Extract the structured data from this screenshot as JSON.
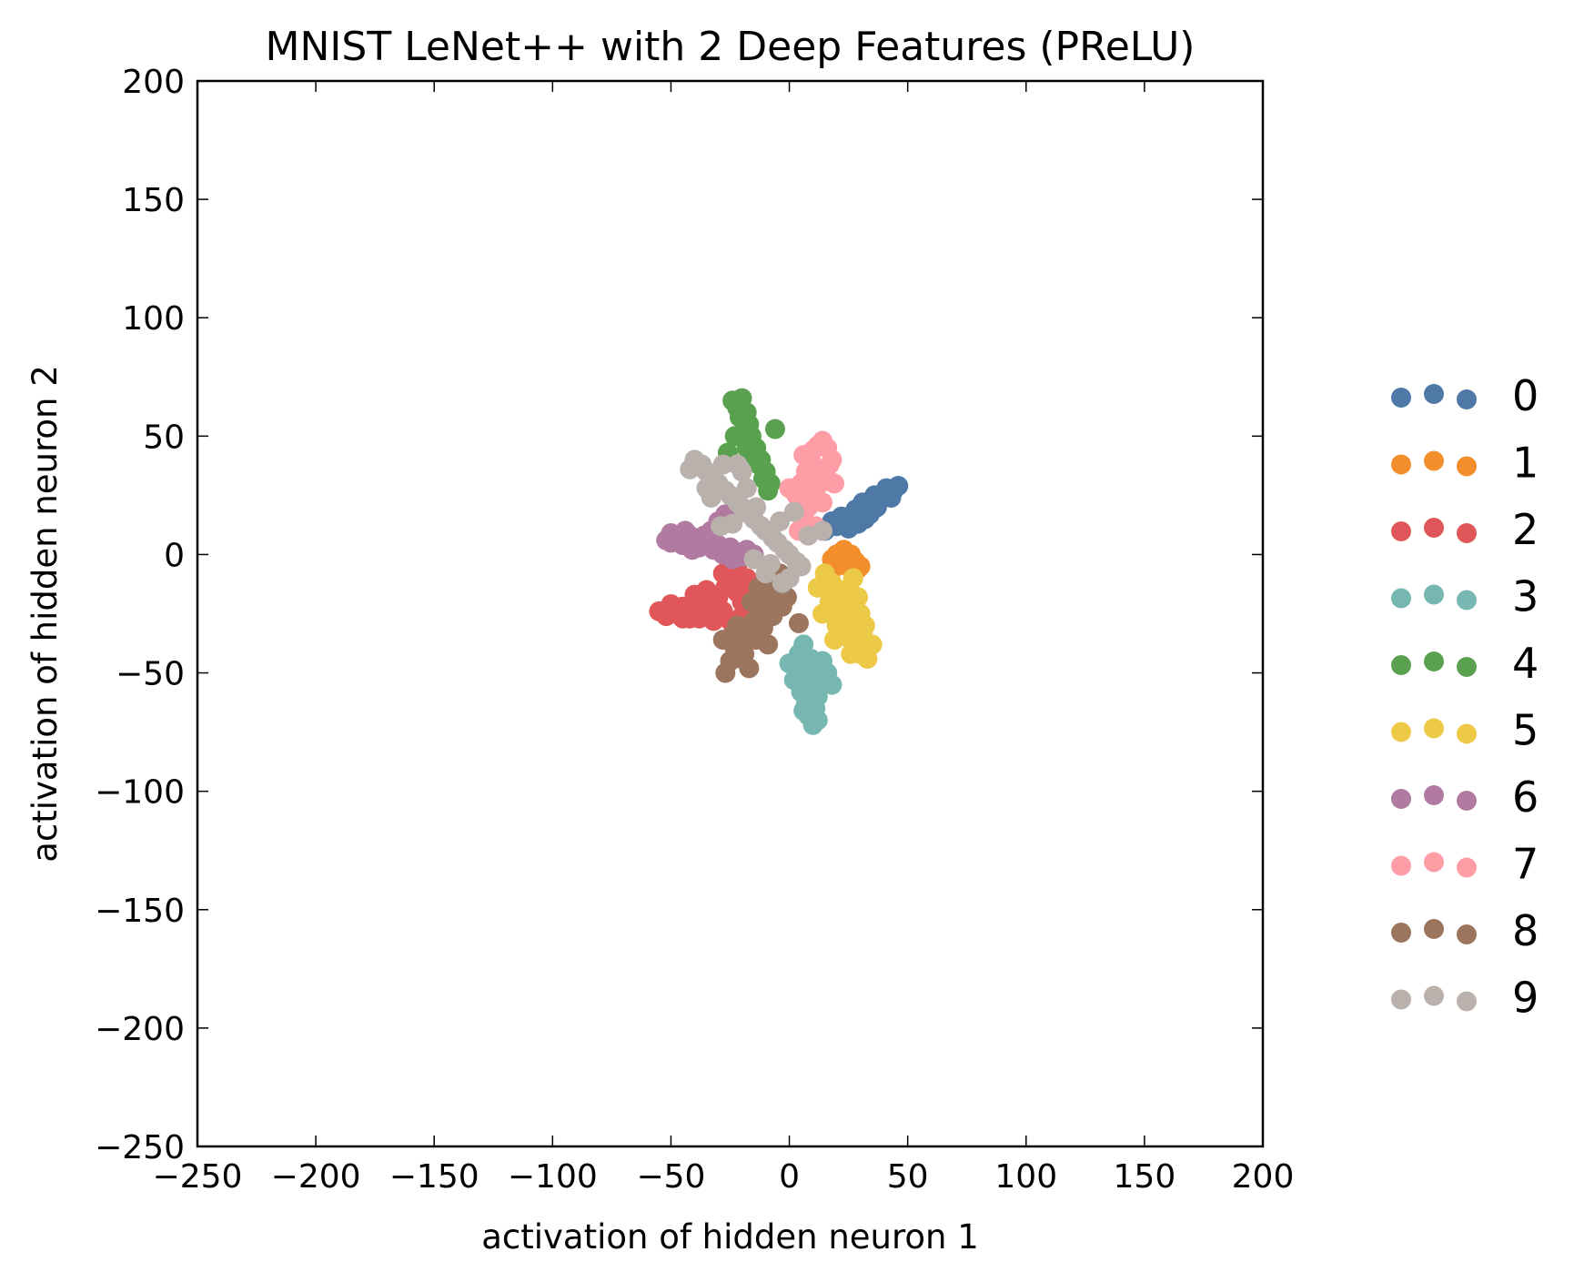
{
  "chart_data": {
    "type": "scatter",
    "title": "MNIST LeNet++ with 2 Deep Features (PReLU)",
    "xlabel": "activation of hidden neuron 1",
    "ylabel": "activation of hidden neuron 2",
    "xlim": [
      -250,
      200
    ],
    "ylim": [
      -250,
      200
    ],
    "xticks": [
      -250,
      -200,
      -150,
      -100,
      -50,
      0,
      50,
      100,
      150,
      200
    ],
    "yticks": [
      -250,
      -200,
      -150,
      -100,
      -50,
      0,
      50,
      100,
      150,
      200
    ],
    "xtick_labels": [
      "−250",
      "−200",
      "−150",
      "−100",
      "−50",
      "0",
      "50",
      "100",
      "150",
      "200"
    ],
    "ytick_labels": [
      "−250",
      "−200",
      "−150",
      "−100",
      "−50",
      "0",
      "50",
      "100",
      "150",
      "200"
    ],
    "grid": false,
    "legend_position": "right",
    "series": [
      {
        "name": "0",
        "color": "#4e79a7",
        "points": [
          [
            15,
            10
          ],
          [
            20,
            12
          ],
          [
            24,
            14
          ],
          [
            27,
            16
          ],
          [
            30,
            18
          ],
          [
            33,
            19
          ],
          [
            35,
            21
          ],
          [
            38,
            23
          ],
          [
            40,
            24
          ],
          [
            42,
            26
          ],
          [
            44,
            27
          ],
          [
            46,
            29
          ],
          [
            22,
            16
          ],
          [
            28,
            19
          ],
          [
            31,
            22
          ],
          [
            36,
            25
          ],
          [
            41,
            28
          ],
          [
            18,
            14
          ],
          [
            25,
            11
          ],
          [
            32,
            15
          ],
          [
            37,
            20
          ],
          [
            43,
            24
          ],
          [
            29,
            13
          ],
          [
            34,
            17
          ]
        ]
      },
      {
        "name": "1",
        "color": "#f28e2b",
        "points": [
          [
            18,
            -2
          ],
          [
            20,
            0
          ],
          [
            22,
            1
          ],
          [
            24,
            -1
          ],
          [
            26,
            0
          ],
          [
            28,
            -3
          ],
          [
            30,
            -5
          ],
          [
            22,
            -3
          ],
          [
            25,
            -4
          ],
          [
            27,
            -2
          ],
          [
            29,
            -6
          ],
          [
            20,
            -5
          ],
          [
            23,
            2
          ],
          [
            26,
            -6
          ]
        ]
      },
      {
        "name": "2",
        "color": "#e15759",
        "points": [
          [
            -55,
            -24
          ],
          [
            -52,
            -26
          ],
          [
            -48,
            -25
          ],
          [
            -45,
            -22
          ],
          [
            -42,
            -27
          ],
          [
            -40,
            -24
          ],
          [
            -38,
            -20
          ],
          [
            -35,
            -26
          ],
          [
            -32,
            -22
          ],
          [
            -30,
            -18
          ],
          [
            -28,
            -24
          ],
          [
            -25,
            -12
          ],
          [
            -22,
            -16
          ],
          [
            -20,
            -20
          ],
          [
            -18,
            -10
          ],
          [
            -15,
            -14
          ],
          [
            -25,
            -28
          ],
          [
            -32,
            -28
          ],
          [
            -40,
            -17
          ],
          [
            -28,
            -8
          ],
          [
            -20,
            -26
          ],
          [
            -35,
            -15
          ],
          [
            -22,
            -6
          ],
          [
            -45,
            -27
          ],
          [
            -50,
            -21
          ],
          [
            -27,
            -14
          ],
          [
            -17,
            -18
          ],
          [
            -38,
            -27
          ]
        ]
      },
      {
        "name": "3",
        "color": "#76b7b2",
        "points": [
          [
            0,
            -46
          ],
          [
            3,
            -52
          ],
          [
            5,
            -58
          ],
          [
            7,
            -63
          ],
          [
            8,
            -68
          ],
          [
            10,
            -72
          ],
          [
            12,
            -70
          ],
          [
            8,
            -55
          ],
          [
            10,
            -50
          ],
          [
            13,
            -48
          ],
          [
            15,
            -54
          ],
          [
            18,
            -55
          ],
          [
            4,
            -42
          ],
          [
            6,
            -38
          ],
          [
            9,
            -44
          ],
          [
            12,
            -60
          ],
          [
            14,
            -45
          ],
          [
            2,
            -53
          ],
          [
            6,
            -66
          ],
          [
            11,
            -65
          ],
          [
            16,
            -50
          ],
          [
            7,
            -48
          ]
        ]
      },
      {
        "name": "4",
        "color": "#59a14f",
        "points": [
          [
            -24,
            65
          ],
          [
            -22,
            62
          ],
          [
            -20,
            66
          ],
          [
            -18,
            60
          ],
          [
            -17,
            55
          ],
          [
            -16,
            50
          ],
          [
            -14,
            45
          ],
          [
            -12,
            40
          ],
          [
            -10,
            35
          ],
          [
            -8,
            30
          ],
          [
            -19,
            52
          ],
          [
            -15,
            42
          ],
          [
            -11,
            32
          ],
          [
            -6,
            53
          ],
          [
            -26,
            43
          ],
          [
            -21,
            58
          ],
          [
            -13,
            38
          ],
          [
            -9,
            27
          ],
          [
            -23,
            50
          ],
          [
            -18,
            45
          ]
        ]
      },
      {
        "name": "5",
        "color": "#edc948",
        "points": [
          [
            15,
            -8
          ],
          [
            18,
            -12
          ],
          [
            20,
            -18
          ],
          [
            22,
            -24
          ],
          [
            24,
            -30
          ],
          [
            26,
            -36
          ],
          [
            28,
            -40
          ],
          [
            30,
            -42
          ],
          [
            33,
            -44
          ],
          [
            35,
            -38
          ],
          [
            25,
            -22
          ],
          [
            28,
            -28
          ],
          [
            31,
            -34
          ],
          [
            20,
            -30
          ],
          [
            17,
            -20
          ],
          [
            23,
            -15
          ],
          [
            29,
            -18
          ],
          [
            26,
            -42
          ],
          [
            32,
            -30
          ],
          [
            14,
            -25
          ],
          [
            19,
            -36
          ],
          [
            30,
            -25
          ],
          [
            12,
            -14
          ],
          [
            27,
            -10
          ]
        ]
      },
      {
        "name": "6",
        "color": "#b07aa1",
        "points": [
          [
            -52,
            6
          ],
          [
            -50,
            9
          ],
          [
            -47,
            7
          ],
          [
            -45,
            4
          ],
          [
            -42,
            8
          ],
          [
            -40,
            5
          ],
          [
            -38,
            3
          ],
          [
            -35,
            6
          ],
          [
            -32,
            2
          ],
          [
            -30,
            4
          ],
          [
            -28,
            0
          ],
          [
            -25,
            3
          ],
          [
            -22,
            1
          ],
          [
            -20,
            -1
          ],
          [
            -18,
            2
          ],
          [
            -15,
            0
          ],
          [
            -30,
            14
          ],
          [
            -33,
            10
          ],
          [
            -27,
            17
          ],
          [
            -44,
            10
          ],
          [
            -36,
            8
          ],
          [
            -24,
            -2
          ],
          [
            -41,
            2
          ],
          [
            -50,
            5
          ]
        ]
      },
      {
        "name": "7",
        "color": "#ff9da7",
        "points": [
          [
            0,
            28
          ],
          [
            3,
            25
          ],
          [
            5,
            30
          ],
          [
            7,
            35
          ],
          [
            9,
            40
          ],
          [
            10,
            44
          ],
          [
            12,
            46
          ],
          [
            14,
            48
          ],
          [
            16,
            45
          ],
          [
            18,
            40
          ],
          [
            15,
            35
          ],
          [
            13,
            30
          ],
          [
            11,
            25
          ],
          [
            8,
            20
          ],
          [
            6,
            15
          ],
          [
            4,
            10
          ],
          [
            2,
            28
          ],
          [
            16,
            32
          ],
          [
            19,
            30
          ],
          [
            9,
            36
          ],
          [
            14,
            22
          ],
          [
            17,
            38
          ],
          [
            6,
            42
          ],
          [
            11,
            12
          ],
          [
            3,
            18
          ]
        ]
      },
      {
        "name": "8",
        "color": "#9c755f",
        "points": [
          [
            -27,
            -50
          ],
          [
            -25,
            -45
          ],
          [
            -23,
            -40
          ],
          [
            -21,
            -37
          ],
          [
            -18,
            -33
          ],
          [
            -15,
            -28
          ],
          [
            -12,
            -24
          ],
          [
            -10,
            -20
          ],
          [
            -8,
            -16
          ],
          [
            -6,
            -12
          ],
          [
            -4,
            -8
          ],
          [
            -14,
            -36
          ],
          [
            -19,
            -42
          ],
          [
            -17,
            -48
          ],
          [
            -11,
            -31
          ],
          [
            -7,
            -26
          ],
          [
            -3,
            -22
          ],
          [
            -22,
            -30
          ],
          [
            -16,
            -20
          ],
          [
            -24,
            -34
          ],
          [
            -9,
            -38
          ],
          [
            -20,
            -44
          ],
          [
            -13,
            -14
          ],
          [
            -1,
            -18
          ],
          [
            4,
            -29
          ],
          [
            -28,
            -36
          ]
        ]
      },
      {
        "name": "9",
        "color": "#bab0ac",
        "points": [
          [
            -40,
            40
          ],
          [
            -37,
            38
          ],
          [
            -35,
            35
          ],
          [
            -32,
            32
          ],
          [
            -30,
            30
          ],
          [
            -27,
            27
          ],
          [
            -25,
            25
          ],
          [
            -22,
            22
          ],
          [
            -20,
            20
          ],
          [
            -17,
            17
          ],
          [
            -15,
            15
          ],
          [
            -12,
            12
          ],
          [
            -10,
            10
          ],
          [
            -7,
            7
          ],
          [
            -5,
            5
          ],
          [
            -2,
            2
          ],
          [
            0,
            0
          ],
          [
            3,
            -3
          ],
          [
            5,
            -5
          ],
          [
            -42,
            36
          ],
          [
            -28,
            38
          ],
          [
            -20,
            35
          ],
          [
            -33,
            24
          ],
          [
            -24,
            13
          ],
          [
            -14,
            20
          ],
          [
            -8,
            -4
          ],
          [
            -4,
            14
          ],
          [
            2,
            18
          ],
          [
            8,
            8
          ],
          [
            14,
            10
          ],
          [
            -18,
            28
          ],
          [
            -29,
            12
          ],
          [
            -10,
            -8
          ],
          [
            0,
            -10
          ],
          [
            -3,
            -12
          ],
          [
            -35,
            28
          ],
          [
            -22,
            38
          ],
          [
            -15,
            -2
          ]
        ]
      }
    ]
  }
}
